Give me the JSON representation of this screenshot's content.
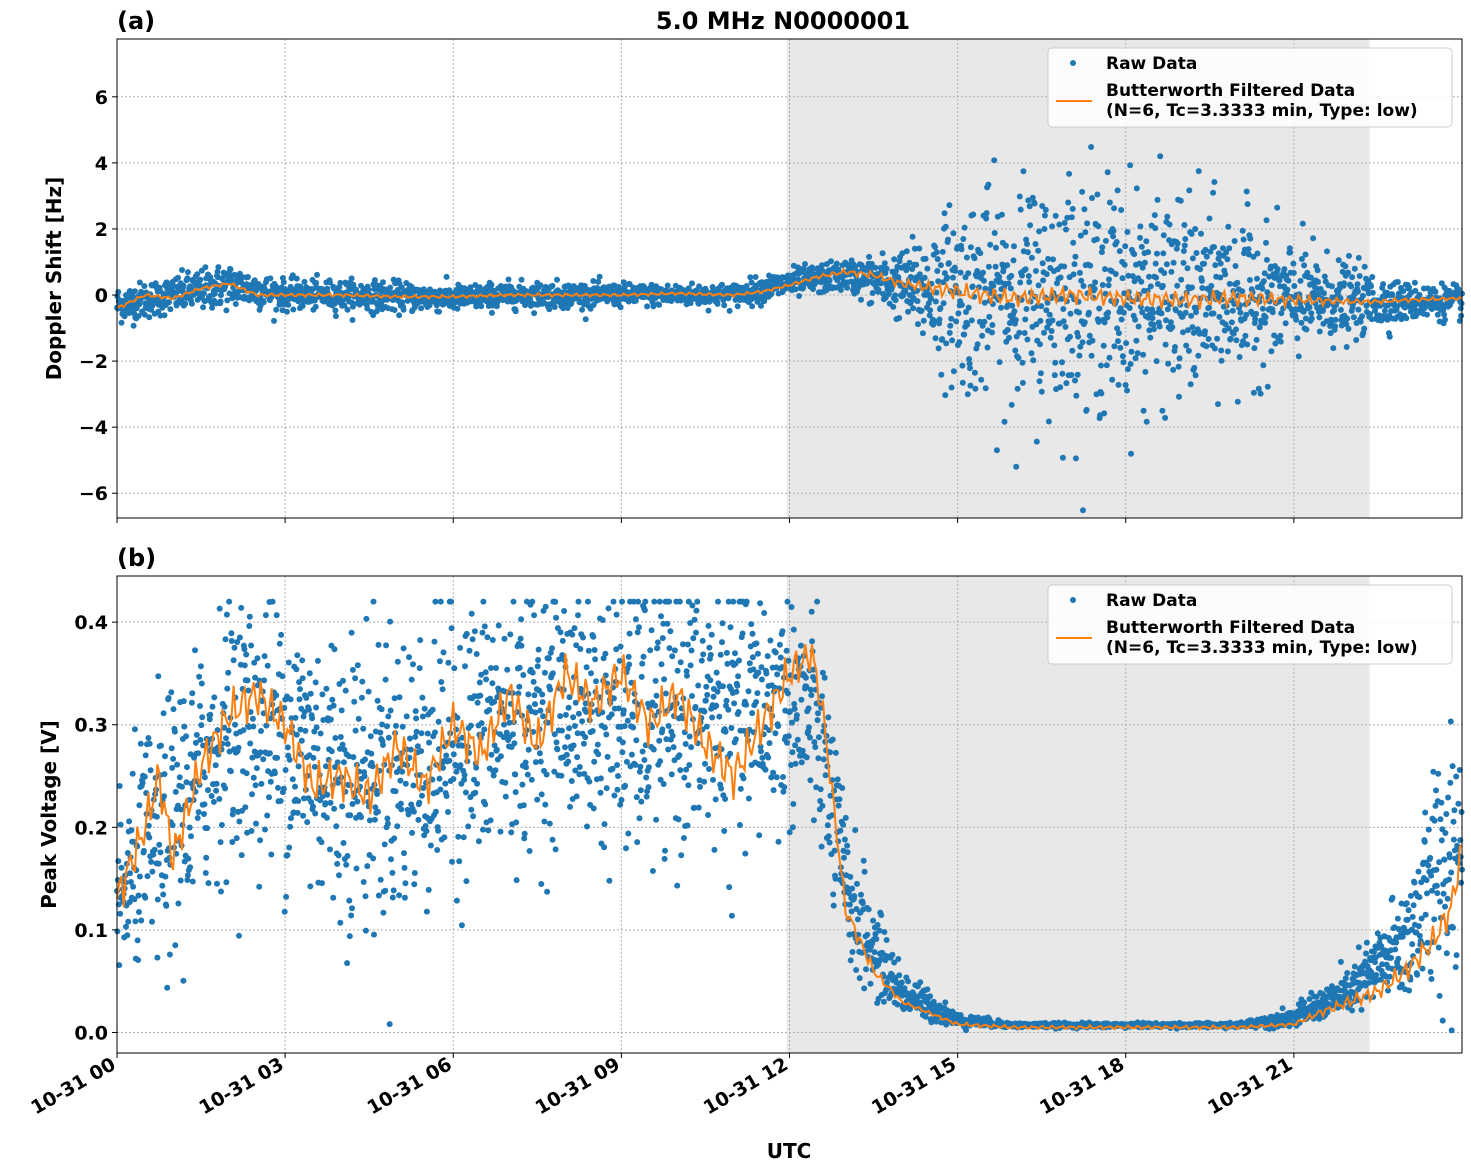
{
  "title": "5.0 MHz N0000001",
  "xlabel": "UTC",
  "x_tick_labels": [
    "10-31 00",
    "10-31 03",
    "10-31 06",
    "10-31 09",
    "10-31 12",
    "10-31 15",
    "10-31 18",
    "10-31 21"
  ],
  "colors": {
    "raw": "#1f77b4",
    "filtered": "#ff7f0e",
    "shade": "#e8e8e8",
    "grid": "#b0b0b0"
  },
  "legend": {
    "raw": "Raw Data",
    "filtered_line1": "Butterworth Filtered Data",
    "filtered_line2": "(N=6, Tc=3.3333 min, Type: low)",
    "placement": "upper right"
  },
  "chart_data": [
    {
      "type": "scatter",
      "panel_label": "(a)",
      "ylabel": "Doppler Shift [Hz]",
      "xlim": [
        "2024-10-31 00:00",
        "2024-10-31 24:00"
      ],
      "ylim": [
        -6.75,
        7.75
      ],
      "yticks": [
        -6,
        -4,
        -2,
        0,
        2,
        4,
        6
      ],
      "y_tick_labels": [
        "−6",
        "−4",
        "−2",
        "0",
        "2",
        "4",
        "6"
      ],
      "grid": true,
      "shaded_span_utc_hours": [
        11.95,
        22.35
      ],
      "series": [
        {
          "name": "Raw Data",
          "kind": "scatter",
          "x_utc_hours": [
            0,
            1,
            2,
            3,
            4,
            5,
            6,
            7,
            8,
            9,
            10,
            11,
            12,
            13,
            14,
            15,
            16,
            17,
            18,
            19,
            20,
            21,
            22,
            23,
            24
          ],
          "center": [
            -0.3,
            0.0,
            0.3,
            0.0,
            0.0,
            -0.05,
            -0.1,
            0.0,
            0.0,
            0.0,
            0.0,
            0.0,
            0.35,
            0.6,
            0.3,
            0.0,
            0.0,
            0.0,
            0.0,
            -0.1,
            -0.1,
            -0.15,
            -0.2,
            -0.2,
            -0.2
          ],
          "spread": [
            0.5,
            0.5,
            0.6,
            0.4,
            0.4,
            0.4,
            0.35,
            0.35,
            0.35,
            0.3,
            0.3,
            0.3,
            0.4,
            0.4,
            0.9,
            2.5,
            3.0,
            3.2,
            3.0,
            2.7,
            2.3,
            1.5,
            1.0,
            0.5,
            0.45
          ]
        },
        {
          "name": "Butterworth Filtered Data (N=6, Tc=3.3333 min, Type: low)",
          "kind": "line",
          "x_utc_hours": [
            0,
            0.5,
            1,
            1.5,
            2,
            2.5,
            3,
            4,
            5,
            6,
            7,
            8,
            9,
            10,
            11,
            11.5,
            12,
            12.5,
            13,
            13.5,
            14,
            15,
            16,
            17,
            18,
            19,
            20,
            21,
            22,
            22.5,
            23,
            24
          ],
          "values": [
            -0.4,
            0.0,
            -0.1,
            0.2,
            0.35,
            0.0,
            0.0,
            0.0,
            -0.05,
            -0.05,
            0.0,
            0.0,
            0.0,
            0.05,
            0.0,
            0.1,
            0.3,
            0.55,
            0.7,
            0.6,
            0.35,
            0.1,
            -0.1,
            0.0,
            -0.1,
            -0.15,
            -0.1,
            -0.15,
            -0.2,
            -0.2,
            -0.15,
            -0.1
          ]
        }
      ]
    },
    {
      "type": "scatter",
      "panel_label": "(b)",
      "ylabel": "Peak Voltage [V]",
      "xlim": [
        "2024-10-31 00:00",
        "2024-10-31 24:00"
      ],
      "ylim": [
        -0.02,
        0.445
      ],
      "yticks": [
        0.0,
        0.1,
        0.2,
        0.3,
        0.4
      ],
      "y_tick_labels": [
        "0.0",
        "0.1",
        "0.2",
        "0.3",
        "0.4"
      ],
      "grid": true,
      "shaded_span_utc_hours": [
        11.95,
        22.35
      ],
      "series": [
        {
          "name": "Raw Data",
          "kind": "scatter",
          "x_utc_hours": [
            0,
            0.5,
            1,
            2,
            3,
            4,
            5,
            6,
            7,
            8,
            9,
            10,
            11,
            12,
            12.5,
            13,
            13.5,
            14,
            15,
            16,
            17,
            18,
            19,
            20,
            21,
            22,
            23,
            24
          ],
          "center": [
            0.12,
            0.18,
            0.2,
            0.3,
            0.29,
            0.25,
            0.25,
            0.28,
            0.3,
            0.32,
            0.3,
            0.31,
            0.31,
            0.32,
            0.3,
            0.14,
            0.08,
            0.04,
            0.012,
            0.007,
            0.007,
            0.007,
            0.007,
            0.007,
            0.015,
            0.04,
            0.09,
            0.2
          ],
          "spread": [
            0.07,
            0.1,
            0.12,
            0.11,
            0.12,
            0.13,
            0.13,
            0.12,
            0.12,
            0.1,
            0.12,
            0.12,
            0.12,
            0.1,
            0.1,
            0.07,
            0.04,
            0.02,
            0.006,
            0.002,
            0.002,
            0.002,
            0.002,
            0.002,
            0.008,
            0.02,
            0.05,
            0.14
          ]
        },
        {
          "name": "Butterworth Filtered Data (N=6, Tc=3.3333 min, Type: low)",
          "kind": "line",
          "x_utc_hours": [
            0,
            0.5,
            0.75,
            1,
            1.5,
            2,
            2.5,
            3,
            3.5,
            4,
            4.5,
            5,
            5.5,
            6,
            6.5,
            7,
            7.5,
            8,
            8.5,
            9,
            9.5,
            10,
            10.5,
            11,
            11.5,
            12,
            12.4,
            12.6,
            13,
            13.5,
            14,
            15,
            16,
            17,
            18,
            19,
            20,
            21,
            21.5,
            22,
            22.5,
            23,
            23.5,
            23.8,
            24
          ],
          "values": [
            0.13,
            0.2,
            0.25,
            0.17,
            0.26,
            0.31,
            0.33,
            0.3,
            0.24,
            0.25,
            0.23,
            0.28,
            0.24,
            0.3,
            0.27,
            0.33,
            0.28,
            0.35,
            0.32,
            0.35,
            0.3,
            0.33,
            0.28,
            0.25,
            0.3,
            0.35,
            0.37,
            0.31,
            0.12,
            0.06,
            0.03,
            0.008,
            0.005,
            0.005,
            0.005,
            0.005,
            0.005,
            0.008,
            0.02,
            0.03,
            0.04,
            0.06,
            0.09,
            0.12,
            0.18
          ]
        }
      ]
    }
  ]
}
